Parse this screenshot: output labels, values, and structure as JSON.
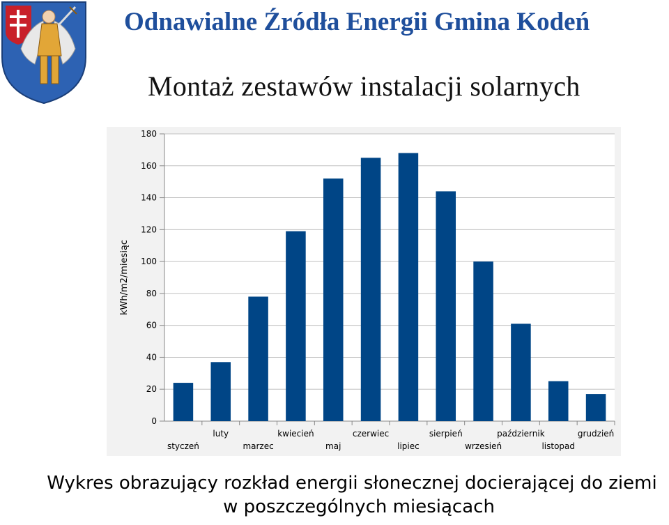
{
  "header": {
    "title": "Odnawialne Źródła Energii Gmina Kodeń",
    "crest_icon": "coat-of-arms-archangel-michael"
  },
  "slide": {
    "title": "Montaż zestawów instalacji solarnych"
  },
  "caption": {
    "line1": "Wykres obrazujący rozkład energii słonecznej docierającej do ziemi",
    "line2": "w poszczególnych miesiącach"
  },
  "colors": {
    "header": "#1f4f9c",
    "bar": "#004586",
    "plot_background": "#ffffff",
    "chart_background": "#f2f2f2",
    "gridline": "#c0c0c0"
  },
  "chart_data": {
    "type": "bar",
    "title": "",
    "xlabel": "",
    "ylabel": "kWh/m2/miesiąc",
    "ylim": [
      0,
      180
    ],
    "yticks": [
      0,
      20,
      40,
      60,
      80,
      100,
      120,
      140,
      160,
      180
    ],
    "grid": true,
    "legend": "none",
    "categories": [
      "styczeń",
      "luty",
      "marzec",
      "kwiecień",
      "maj",
      "czerwiec",
      "lipiec",
      "sierpień",
      "wrzesień",
      "październik",
      "listopad",
      "grudzień"
    ],
    "values": [
      24,
      37,
      78,
      119,
      152,
      165,
      168,
      144,
      100,
      61,
      25,
      17
    ]
  }
}
